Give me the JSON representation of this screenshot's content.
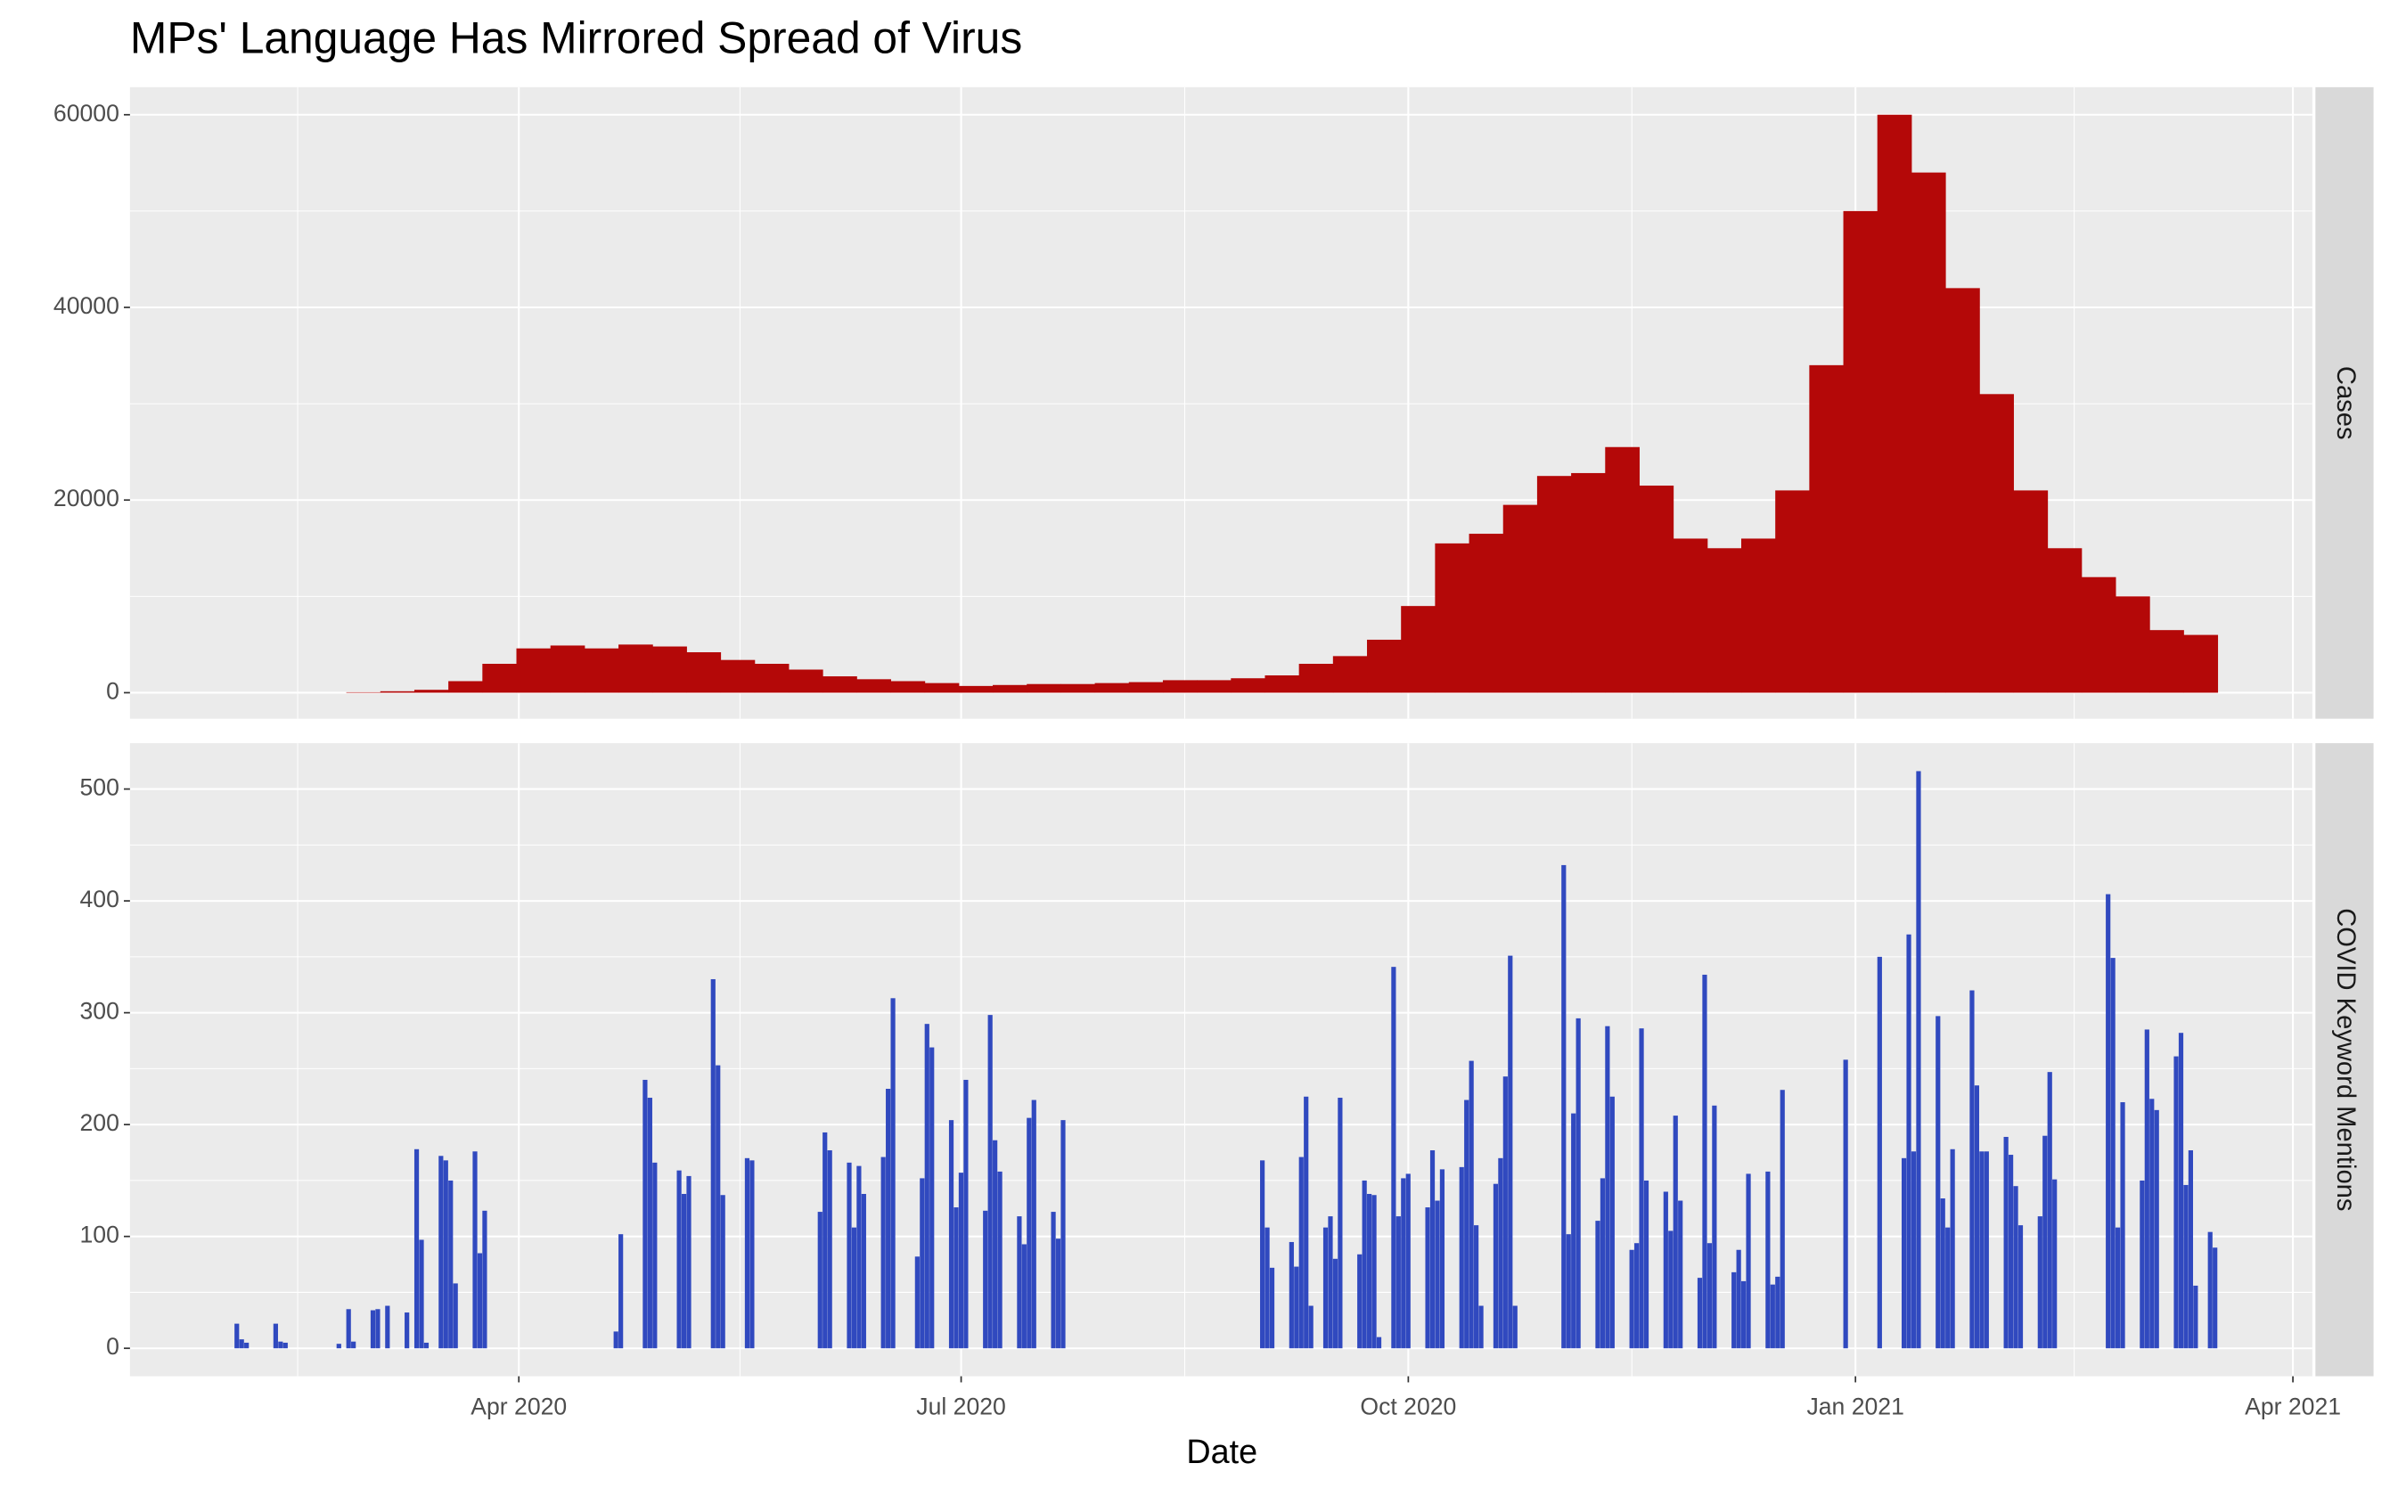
{
  "chart_data": {
    "title": "MPs' Language Has Mirrored Spread of Virus",
    "x_label": "Date",
    "xlim": [
      "2020-01-12",
      "2021-04-05"
    ],
    "xticks": [
      {
        "value": "2020-04-01",
        "label": "Apr 2020"
      },
      {
        "value": "2020-07-01",
        "label": "Jul 2020"
      },
      {
        "value": "2020-10-01",
        "label": "Oct 2020"
      },
      {
        "value": "2021-01-01",
        "label": "Jan 2021"
      },
      {
        "value": "2021-04-01",
        "label": "Apr 2021"
      }
    ],
    "grid": true,
    "panels": [
      {
        "type": "bar",
        "strip": "Cases",
        "color": "#b40808",
        "bar_days": 7,
        "ylim": [
          -2700,
          62860
        ],
        "yticks": [
          0,
          20000,
          40000,
          60000
        ],
        "x": [
          "2020-02-01",
          "2020-02-08",
          "2020-02-15",
          "2020-02-22",
          "2020-02-29",
          "2020-03-07",
          "2020-03-14",
          "2020-03-21",
          "2020-03-28",
          "2020-04-04",
          "2020-04-11",
          "2020-04-18",
          "2020-04-25",
          "2020-05-02",
          "2020-05-09",
          "2020-05-16",
          "2020-05-23",
          "2020-05-30",
          "2020-06-06",
          "2020-06-13",
          "2020-06-20",
          "2020-06-27",
          "2020-07-04",
          "2020-07-11",
          "2020-07-18",
          "2020-07-25",
          "2020-08-01",
          "2020-08-08",
          "2020-08-15",
          "2020-08-22",
          "2020-08-29",
          "2020-09-05",
          "2020-09-12",
          "2020-09-19",
          "2020-09-26",
          "2020-10-03",
          "2020-10-10",
          "2020-10-17",
          "2020-10-24",
          "2020-10-31",
          "2020-11-07",
          "2020-11-14",
          "2020-11-21",
          "2020-11-28",
          "2020-12-05",
          "2020-12-12",
          "2020-12-19",
          "2020-12-26",
          "2021-01-02",
          "2021-01-09",
          "2021-01-16",
          "2021-01-23",
          "2021-01-30",
          "2021-02-06",
          "2021-02-13",
          "2021-02-20",
          "2021-02-27",
          "2021-03-06",
          "2021-03-13"
        ],
        "values": [
          0,
          0,
          0,
          0,
          50,
          150,
          300,
          1200,
          3000,
          4600,
          4900,
          4600,
          5000,
          4800,
          4200,
          3400,
          3000,
          2400,
          1700,
          1400,
          1200,
          1000,
          700,
          800,
          900,
          900,
          1000,
          1100,
          1300,
          1300,
          1500,
          1800,
          3000,
          3800,
          5500,
          9000,
          15500,
          16500,
          19500,
          22500,
          22800,
          25500,
          21500,
          16000,
          15000,
          16000,
          21000,
          34000,
          50000,
          60000,
          54000,
          42000,
          31000,
          21000,
          15000,
          12000,
          10000,
          6500,
          6000
        ]
      },
      {
        "type": "bar",
        "strip": "COVID Keyword Mentions",
        "color": "#3049bf",
        "bar_days": 1,
        "ylim": [
          -25,
          541
        ],
        "yticks": [
          0,
          100,
          200,
          300,
          400,
          500
        ],
        "x": [
          "2020-02-03",
          "2020-02-04",
          "2020-02-05",
          "2020-02-11",
          "2020-02-12",
          "2020-02-13",
          "2020-02-24",
          "2020-02-26",
          "2020-02-27",
          "2020-03-02",
          "2020-03-03",
          "2020-03-05",
          "2020-03-09",
          "2020-03-11",
          "2020-03-12",
          "2020-03-13",
          "2020-03-16",
          "2020-03-17",
          "2020-03-18",
          "2020-03-19",
          "2020-03-23",
          "2020-03-24",
          "2020-03-25",
          "2020-04-21",
          "2020-04-22",
          "2020-04-27",
          "2020-04-28",
          "2020-04-29",
          "2020-05-04",
          "2020-05-05",
          "2020-05-06",
          "2020-05-11",
          "2020-05-12",
          "2020-05-13",
          "2020-05-18",
          "2020-05-19",
          "2020-06-02",
          "2020-06-03",
          "2020-06-04",
          "2020-06-08",
          "2020-06-09",
          "2020-06-10",
          "2020-06-11",
          "2020-06-15",
          "2020-06-16",
          "2020-06-17",
          "2020-06-22",
          "2020-06-23",
          "2020-06-24",
          "2020-06-25",
          "2020-06-29",
          "2020-06-30",
          "2020-07-01",
          "2020-07-02",
          "2020-07-06",
          "2020-07-07",
          "2020-07-08",
          "2020-07-09",
          "2020-07-13",
          "2020-07-14",
          "2020-07-15",
          "2020-07-16",
          "2020-07-20",
          "2020-07-21",
          "2020-07-22",
          "2020-09-01",
          "2020-09-02",
          "2020-09-03",
          "2020-09-07",
          "2020-09-08",
          "2020-09-09",
          "2020-09-10",
          "2020-09-11",
          "2020-09-14",
          "2020-09-15",
          "2020-09-16",
          "2020-09-17",
          "2020-09-21",
          "2020-09-22",
          "2020-09-23",
          "2020-09-24",
          "2020-09-25",
          "2020-09-28",
          "2020-09-29",
          "2020-09-30",
          "2020-10-01",
          "2020-10-05",
          "2020-10-06",
          "2020-10-07",
          "2020-10-08",
          "2020-10-12",
          "2020-10-13",
          "2020-10-14",
          "2020-10-15",
          "2020-10-16",
          "2020-10-19",
          "2020-10-20",
          "2020-10-21",
          "2020-10-22",
          "2020-10-23",
          "2020-11-02",
          "2020-11-03",
          "2020-11-04",
          "2020-11-05",
          "2020-11-09",
          "2020-11-10",
          "2020-11-11",
          "2020-11-12",
          "2020-11-16",
          "2020-11-17",
          "2020-11-18",
          "2020-11-19",
          "2020-11-23",
          "2020-11-24",
          "2020-11-25",
          "2020-11-26",
          "2020-11-30",
          "2020-12-01",
          "2020-12-02",
          "2020-12-03",
          "2020-12-07",
          "2020-12-08",
          "2020-12-09",
          "2020-12-10",
          "2020-12-14",
          "2020-12-15",
          "2020-12-16",
          "2020-12-17",
          "2020-12-30",
          "2021-01-06",
          "2021-01-11",
          "2021-01-12",
          "2021-01-13",
          "2021-01-14",
          "2021-01-18",
          "2021-01-19",
          "2021-01-20",
          "2021-01-21",
          "2021-01-25",
          "2021-01-26",
          "2021-01-27",
          "2021-01-28",
          "2021-02-01",
          "2021-02-02",
          "2021-02-03",
          "2021-02-04",
          "2021-02-08",
          "2021-02-09",
          "2021-02-10",
          "2021-02-11",
          "2021-02-22",
          "2021-02-23",
          "2021-02-24",
          "2021-02-25",
          "2021-03-01",
          "2021-03-02",
          "2021-03-03",
          "2021-03-04",
          "2021-03-08",
          "2021-03-09",
          "2021-03-10",
          "2021-03-11",
          "2021-03-12",
          "2021-03-15",
          "2021-03-16"
        ],
        "values": [
          22,
          8,
          5,
          22,
          6,
          5,
          4,
          35,
          6,
          34,
          35,
          38,
          32,
          178,
          97,
          5,
          172,
          168,
          150,
          58,
          176,
          85,
          123,
          15,
          102,
          240,
          224,
          166,
          159,
          138,
          154,
          330,
          253,
          137,
          170,
          168,
          122,
          193,
          177,
          166,
          108,
          163,
          138,
          171,
          232,
          313,
          82,
          152,
          290,
          269,
          204,
          126,
          157,
          240,
          123,
          298,
          186,
          158,
          118,
          93,
          206,
          222,
          122,
          98,
          204,
          168,
          108,
          72,
          95,
          73,
          171,
          225,
          38,
          108,
          118,
          80,
          224,
          84,
          150,
          138,
          137,
          10,
          341,
          118,
          152,
          156,
          126,
          177,
          132,
          160,
          162,
          222,
          257,
          110,
          38,
          147,
          170,
          243,
          351,
          38,
          432,
          102,
          210,
          295,
          114,
          152,
          288,
          225,
          88,
          94,
          286,
          150,
          140,
          105,
          208,
          132,
          63,
          334,
          94,
          217,
          68,
          88,
          60,
          156,
          158,
          57,
          64,
          231,
          258,
          350,
          170,
          370,
          176,
          516,
          297,
          134,
          108,
          178,
          320,
          235,
          176,
          176,
          189,
          173,
          145,
          110,
          118,
          190,
          247,
          151,
          406,
          349,
          108,
          220,
          150,
          285,
          223,
          213,
          261,
          282,
          146,
          177,
          56,
          104,
          90
        ]
      }
    ]
  }
}
